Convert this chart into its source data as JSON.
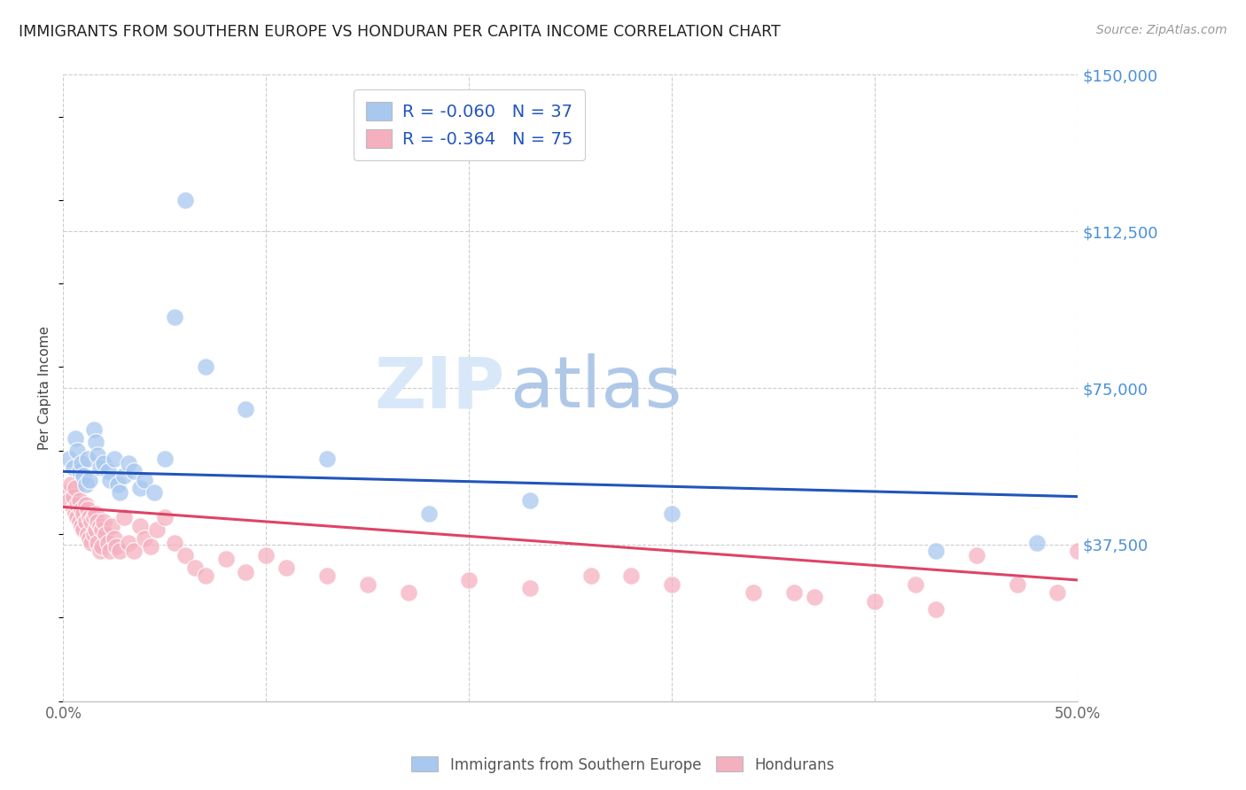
{
  "title": "IMMIGRANTS FROM SOUTHERN EUROPE VS HONDURAN PER CAPITA INCOME CORRELATION CHART",
  "source": "Source: ZipAtlas.com",
  "ylabel": "Per Capita Income",
  "xlim": [
    0.0,
    0.5
  ],
  "ylim": [
    0,
    150000
  ],
  "yticks": [
    0,
    37500,
    75000,
    112500,
    150000
  ],
  "ytick_labels": [
    "",
    "$37,500",
    "$75,000",
    "$112,500",
    "$150,000"
  ],
  "xticks": [
    0.0,
    0.1,
    0.2,
    0.3,
    0.4,
    0.5
  ],
  "xtick_labels": [
    "0.0%",
    "",
    "",
    "",
    "",
    "50.0%"
  ],
  "blue_R": -0.06,
  "blue_N": 37,
  "pink_R": -0.364,
  "pink_N": 75,
  "blue_color": "#a8c8f0",
  "pink_color": "#f5b0c0",
  "blue_line_color": "#2255bb",
  "pink_line_color": "#dd4466",
  "background_color": "#ffffff",
  "grid_color": "#cccccc",
  "title_color": "#222222",
  "axis_label_color": "#444444",
  "ytick_color": "#4a90d9",
  "watermark_zip_color": "#d8e8f8",
  "watermark_atlas_color": "#b0c8e8",
  "legend_label_blue": "Immigrants from Southern Europe",
  "legend_label_pink": "Hondurans",
  "blue_line_y0": 55000,
  "blue_line_y1": 49000,
  "pink_line_y0": 46500,
  "pink_line_y1": 29000,
  "blue_scatter_x": [
    0.003,
    0.005,
    0.006,
    0.007,
    0.008,
    0.009,
    0.01,
    0.011,
    0.012,
    0.013,
    0.015,
    0.016,
    0.017,
    0.018,
    0.02,
    0.022,
    0.023,
    0.025,
    0.027,
    0.028,
    0.03,
    0.032,
    0.035,
    0.038,
    0.04,
    0.045,
    0.05,
    0.055,
    0.06,
    0.07,
    0.09,
    0.13,
    0.18,
    0.23,
    0.3,
    0.43,
    0.48
  ],
  "blue_scatter_y": [
    58000,
    56000,
    63000,
    60000,
    55000,
    57000,
    54000,
    52000,
    58000,
    53000,
    65000,
    62000,
    59000,
    56000,
    57000,
    55000,
    53000,
    58000,
    52000,
    50000,
    54000,
    57000,
    55000,
    51000,
    53000,
    50000,
    58000,
    92000,
    120000,
    80000,
    70000,
    58000,
    45000,
    48000,
    45000,
    36000,
    38000
  ],
  "pink_scatter_x": [
    0.002,
    0.003,
    0.004,
    0.005,
    0.005,
    0.006,
    0.006,
    0.007,
    0.007,
    0.008,
    0.008,
    0.009,
    0.009,
    0.01,
    0.01,
    0.011,
    0.011,
    0.012,
    0.012,
    0.013,
    0.013,
    0.014,
    0.014,
    0.015,
    0.015,
    0.016,
    0.016,
    0.017,
    0.017,
    0.018,
    0.018,
    0.019,
    0.019,
    0.02,
    0.021,
    0.022,
    0.023,
    0.024,
    0.025,
    0.026,
    0.028,
    0.03,
    0.032,
    0.035,
    0.038,
    0.04,
    0.043,
    0.046,
    0.05,
    0.055,
    0.06,
    0.065,
    0.07,
    0.08,
    0.09,
    0.1,
    0.11,
    0.13,
    0.15,
    0.17,
    0.2,
    0.23,
    0.26,
    0.3,
    0.34,
    0.37,
    0.4,
    0.43,
    0.45,
    0.47,
    0.49,
    0.5,
    0.36,
    0.28,
    0.42
  ],
  "pink_scatter_y": [
    50000,
    48000,
    52000,
    46000,
    49000,
    45000,
    51000,
    47000,
    44000,
    48000,
    43000,
    46000,
    42000,
    45000,
    41000,
    47000,
    43000,
    46000,
    40000,
    44000,
    39000,
    43000,
    38000,
    44000,
    40000,
    45000,
    41000,
    43000,
    38000,
    42000,
    36000,
    41000,
    37000,
    43000,
    40000,
    38000,
    36000,
    42000,
    39000,
    37000,
    36000,
    44000,
    38000,
    36000,
    42000,
    39000,
    37000,
    41000,
    44000,
    38000,
    35000,
    32000,
    30000,
    34000,
    31000,
    35000,
    32000,
    30000,
    28000,
    26000,
    29000,
    27000,
    30000,
    28000,
    26000,
    25000,
    24000,
    22000,
    35000,
    28000,
    26000,
    36000,
    26000,
    30000,
    28000
  ]
}
